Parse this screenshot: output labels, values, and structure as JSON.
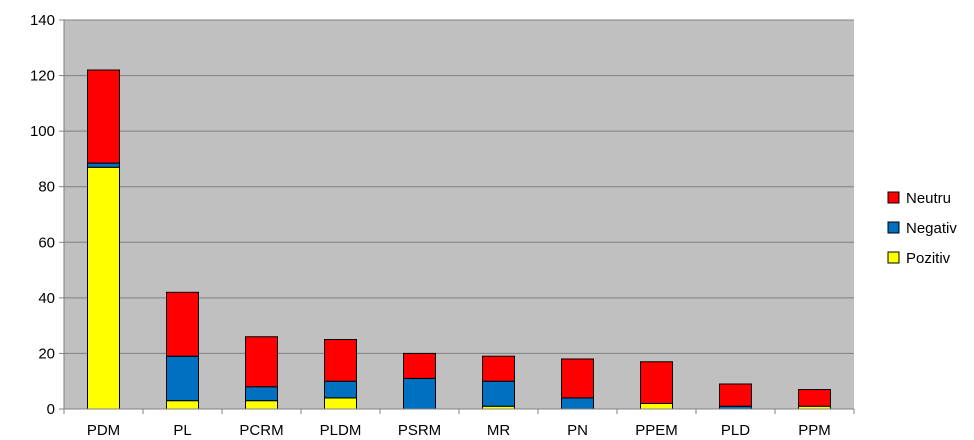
{
  "chart_data": {
    "type": "bar",
    "stacked": true,
    "title": "",
    "xlabel": "",
    "ylabel": "",
    "categories": [
      "PDM",
      "PL",
      "PCRM",
      "PLDM",
      "PSRM",
      "MR",
      "PN",
      "PPEM",
      "PLD",
      "PPM"
    ],
    "series": [
      {
        "name": "Pozitiv",
        "color": "#ffff00",
        "values": [
          87,
          3,
          3,
          4,
          0,
          1,
          0,
          2,
          0,
          1
        ]
      },
      {
        "name": "Negativ",
        "color": "#0070c0",
        "values": [
          1.5,
          16,
          5,
          6,
          11,
          9,
          4,
          0,
          1,
          0
        ]
      },
      {
        "name": "Neutru",
        "color": "#ff0000",
        "values": [
          33.5,
          23,
          18,
          15,
          9,
          9,
          14,
          15,
          8,
          6
        ]
      }
    ],
    "ylim": [
      0,
      140
    ],
    "yticks": [
      0,
      20,
      40,
      60,
      80,
      100,
      120,
      140
    ],
    "grid": true,
    "plot_background": "#c0c0c0",
    "legend_position": "right",
    "legend_order": [
      "Neutru",
      "Negativ",
      "Pozitiv"
    ]
  }
}
